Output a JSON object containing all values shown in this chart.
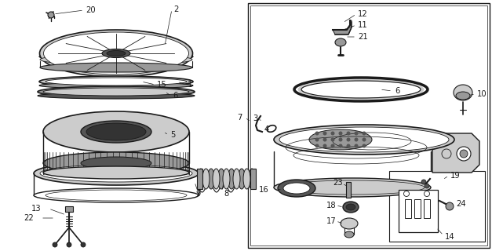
{
  "bg_color": "#ffffff",
  "lc": "#1a1a1a",
  "fig_width": 6.27,
  "fig_height": 3.2,
  "dpi": 100,
  "gray1": "#cccccc",
  "gray2": "#999999",
  "gray3": "#555555",
  "gray4": "#333333"
}
